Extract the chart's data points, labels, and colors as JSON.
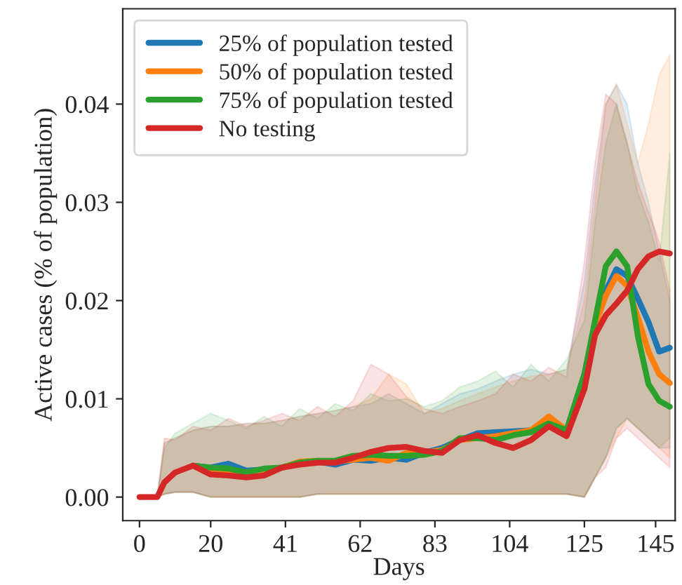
{
  "chart_data": {
    "type": "line",
    "xlabel": "Days",
    "ylabel": "Active cases (% of population)",
    "xlim": [
      -4.7,
      150.5
    ],
    "ylim": [
      -0.0024,
      0.0497
    ],
    "xticks": [
      0,
      20,
      41,
      62,
      83,
      104,
      125,
      145
    ],
    "yticks": [
      {
        "value": 0,
        "label": "0.00"
      },
      {
        "value": 0.01,
        "label": "0.01"
      },
      {
        "value": 0.02,
        "label": "0.02"
      },
      {
        "value": 0.03,
        "label": "0.03"
      },
      {
        "value": 0.04,
        "label": "0.04"
      }
    ],
    "grid": false,
    "legend": "top left",
    "line_style": "solid",
    "marker": "none",
    "x": [
      0,
      5,
      7,
      10,
      15,
      20,
      25,
      30,
      35,
      40,
      45,
      50,
      55,
      60,
      65,
      70,
      75,
      80,
      85,
      90,
      95,
      100,
      105,
      110,
      115,
      120,
      125,
      128,
      131,
      134,
      137,
      140,
      143,
      146,
      149
    ],
    "series": [
      {
        "name": "25% of population tested",
        "color": "#1f77b4",
        "values": [
          null,
          null,
          null,
          null,
          0.0032,
          0.003,
          0.0034,
          0.0027,
          0.0028,
          0.003,
          0.0035,
          0.0036,
          0.0033,
          0.0038,
          0.0037,
          0.004,
          0.0038,
          0.0045,
          0.005,
          0.0058,
          0.0065,
          0.0066,
          0.0067,
          0.0068,
          0.0072,
          0.0068,
          0.0125,
          0.0175,
          0.021,
          0.0232,
          0.0225,
          0.0202,
          0.0178,
          0.0148,
          0.0152
        ],
        "lower": [
          0,
          0,
          0.0003,
          0.0005,
          0.0005,
          0,
          0,
          0,
          0,
          0,
          0,
          0.0003,
          0.0003,
          0.0003,
          0.0003,
          0.0003,
          0.0003,
          0.0003,
          0.0003,
          0.0003,
          0.0003,
          0.0003,
          0.0003,
          0.0003,
          0.0003,
          0.0003,
          0,
          0.002,
          0.004,
          0.007,
          0.008,
          0.007,
          0.006,
          0.005,
          0.005
        ],
        "upper": [
          0,
          0,
          0.0055,
          0.006,
          0.0068,
          0.0072,
          0.0072,
          0.0075,
          0.0075,
          0.0078,
          0.0082,
          0.0085,
          0.0088,
          0.0092,
          0.0095,
          0.0105,
          0.0095,
          0.0085,
          0.0095,
          0.0105,
          0.011,
          0.0118,
          0.0125,
          0.013,
          0.0125,
          0.013,
          0.022,
          0.032,
          0.04,
          0.042,
          0.04,
          0.034,
          0.03,
          0.025,
          0.02
        ]
      },
      {
        "name": "50% of population tested",
        "color": "#ff7f0e",
        "values": [
          null,
          null,
          null,
          null,
          0.0032,
          0.0028,
          0.0027,
          0.0025,
          0.0028,
          0.003,
          0.0036,
          0.0037,
          0.0036,
          0.0038,
          0.004,
          0.0037,
          0.0045,
          0.0045,
          0.0048,
          0.0058,
          0.006,
          0.0062,
          0.0065,
          0.0068,
          0.0082,
          0.0068,
          0.012,
          0.0175,
          0.0205,
          0.0225,
          0.0215,
          0.0183,
          0.0148,
          0.0125,
          0.0116
        ],
        "lower": [
          0,
          0,
          0.0003,
          0.0005,
          0.0005,
          0,
          0,
          0,
          0,
          0,
          0,
          0.0003,
          0.0003,
          0.0003,
          0.0003,
          0.0003,
          0.0003,
          0.0003,
          0.0003,
          0.0003,
          0.0003,
          0.0003,
          0.0003,
          0.0003,
          0.0003,
          0.0003,
          0,
          0.002,
          0.004,
          0.006,
          0.008,
          0.007,
          0.006,
          0.005,
          0.004
        ],
        "upper": [
          0,
          0,
          0.0055,
          0.006,
          0.0068,
          0.0072,
          0.0072,
          0.0075,
          0.0075,
          0.0078,
          0.0082,
          0.0085,
          0.0088,
          0.0092,
          0.01,
          0.0125,
          0.0115,
          0.0085,
          0.009,
          0.0098,
          0.0105,
          0.0112,
          0.0118,
          0.0123,
          0.0125,
          0.013,
          0.02,
          0.03,
          0.04,
          0.042,
          0.038,
          0.034,
          0.038,
          0.043,
          0.045
        ]
      },
      {
        "name": "75% of population tested",
        "color": "#2ca02c",
        "values": [
          null,
          null,
          null,
          null,
          0.0032,
          0.003,
          0.0029,
          0.0025,
          0.0029,
          0.003,
          0.0035,
          0.0037,
          0.0037,
          0.0042,
          0.0043,
          0.0042,
          0.0042,
          0.0043,
          0.0047,
          0.006,
          0.006,
          0.0058,
          0.0063,
          0.0066,
          0.0075,
          0.0068,
          0.0125,
          0.018,
          0.0235,
          0.025,
          0.0235,
          0.0164,
          0.0115,
          0.0098,
          0.0092
        ],
        "lower": [
          0,
          0,
          0.0003,
          0.0005,
          0.0005,
          0,
          0,
          0,
          0,
          0,
          0,
          0.0003,
          0.0003,
          0.0003,
          0.0003,
          0.0003,
          0.0003,
          0.0003,
          0.0003,
          0.0003,
          0.0003,
          0.0003,
          0.0003,
          0.0003,
          0.0003,
          0.0003,
          0,
          0.002,
          0.004,
          0.007,
          0.008,
          0.007,
          0.006,
          0.005,
          0.006
        ],
        "upper": [
          0,
          0,
          0.005,
          0.0065,
          0.0075,
          0.0085,
          0.0078,
          0.007,
          0.0082,
          0.0072,
          0.009,
          0.008,
          0.0095,
          0.0088,
          0.0105,
          0.0098,
          0.01,
          0.0092,
          0.0098,
          0.0112,
          0.0118,
          0.0128,
          0.0112,
          0.0135,
          0.0118,
          0.014,
          0.018,
          0.028,
          0.036,
          0.04,
          0.036,
          0.031,
          0.028,
          0.024,
          0.035
        ]
      },
      {
        "name": "No testing",
        "color": "#d62728",
        "values": [
          0,
          0,
          0.0015,
          0.0025,
          0.0032,
          0.0023,
          0.0022,
          0.002,
          0.0022,
          0.003,
          0.0033,
          0.0035,
          0.0035,
          0.004,
          0.0046,
          0.005,
          0.0051,
          0.0047,
          0.0045,
          0.0058,
          0.0063,
          0.0055,
          0.005,
          0.0058,
          0.0072,
          0.0062,
          0.011,
          0.0165,
          0.0185,
          0.0197,
          0.021,
          0.0232,
          0.0245,
          0.025,
          0.0248
        ],
        "lower": [
          0,
          0,
          0.0003,
          0.0005,
          0.0005,
          0,
          0,
          0,
          0,
          0,
          0,
          0.0003,
          0.0003,
          0.0003,
          0.0003,
          0.0003,
          0.0003,
          0.0003,
          0.0003,
          0.0003,
          0.0003,
          0.0003,
          0.0003,
          0.0003,
          0.0003,
          0.0003,
          0,
          0.002,
          0.003,
          0.006,
          0.007,
          0.006,
          0.005,
          0.004,
          0.003
        ],
        "upper": [
          0,
          0,
          0.006,
          0.0058,
          0.0072,
          0.0068,
          0.008,
          0.0072,
          0.0078,
          0.0085,
          0.0078,
          0.0092,
          0.0082,
          0.0098,
          0.0135,
          0.0125,
          0.0102,
          0.009,
          0.0085,
          0.0092,
          0.0098,
          0.0105,
          0.0125,
          0.0118,
          0.0132,
          0.0122,
          0.024,
          0.034,
          0.041,
          0.04,
          0.036,
          0.032,
          0.029,
          0.026,
          0.021
        ]
      }
    ]
  }
}
